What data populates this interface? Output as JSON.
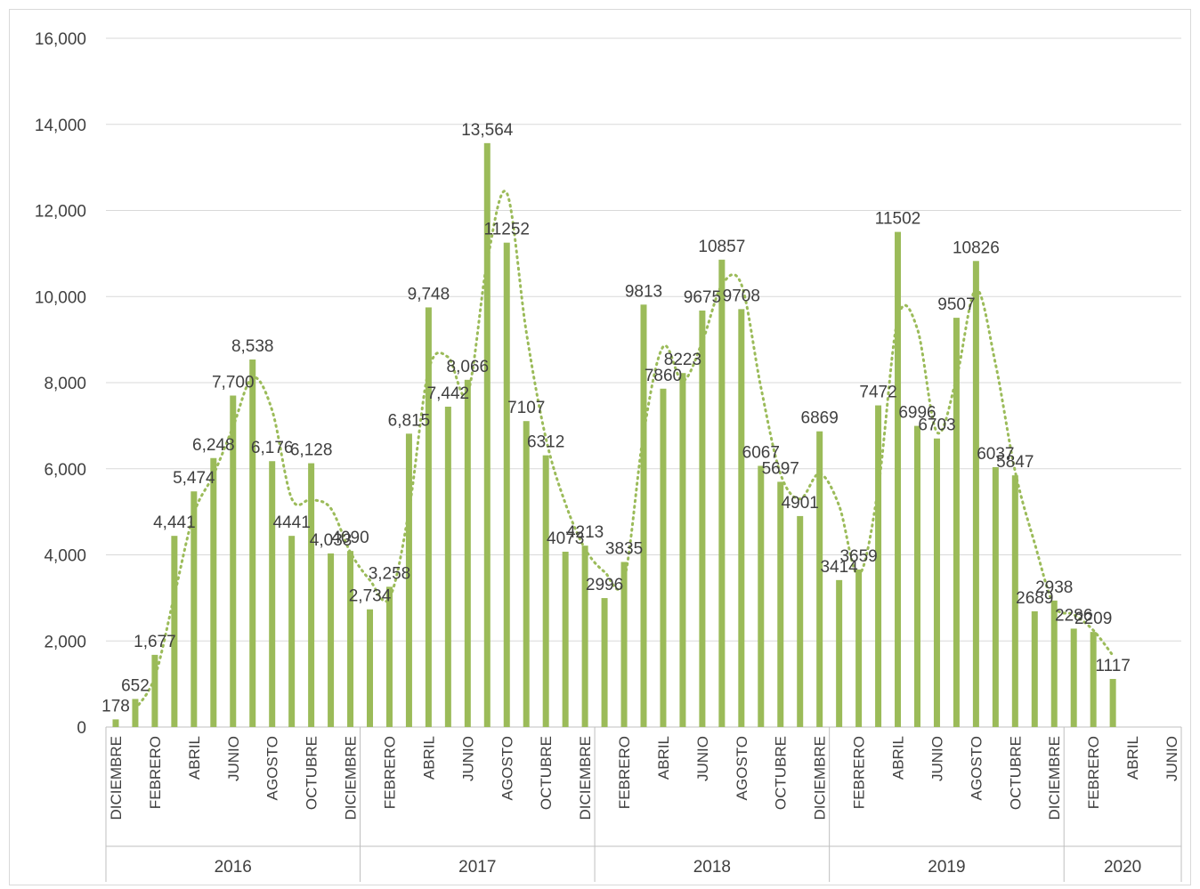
{
  "chart_data": {
    "type": "bar",
    "title": "",
    "xlabel": "",
    "ylabel": "",
    "ylim": [
      0,
      16000
    ],
    "yticks": [
      "0",
      "2,000",
      "4,000",
      "6,000",
      "8,000",
      "10,000",
      "12,000",
      "14,000",
      "16,000"
    ],
    "grid": true,
    "legend": "none",
    "bar_color": "#9bbb59",
    "trend_color": "#9bbb59",
    "trendline": "moving-average",
    "categories": [
      "DICIEMBRE",
      "",
      "FEBRERO",
      "",
      "ABRIL",
      "",
      "JUNIO",
      "",
      "AGOSTO",
      "",
      "OCTUBRE",
      "",
      "DICIEMBRE",
      "",
      "FEBRERO",
      "",
      "ABRIL",
      "",
      "JUNIO",
      "",
      "AGOSTO",
      "",
      "OCTUBRE",
      "",
      "DICIEMBRE",
      "",
      "FEBRERO",
      "",
      "ABRIL",
      "",
      "JUNIO",
      "",
      "AGOSTO",
      "",
      "OCTUBRE",
      "",
      "DICIEMBRE",
      "",
      "FEBRERO",
      "",
      "ABRIL",
      "",
      "JUNIO",
      "",
      "AGOSTO",
      "",
      "OCTUBRE",
      "",
      "DICIEMBRE",
      "",
      "FEBRERO",
      "",
      "ABRIL",
      "",
      "JUNIO"
    ],
    "years": [
      {
        "label": "2016",
        "from": 0,
        "to": 12
      },
      {
        "label": "2017",
        "from": 13,
        "to": 24
      },
      {
        "label": "2018",
        "from": 25,
        "to": 36
      },
      {
        "label": "2019",
        "from": 37,
        "to": 48
      },
      {
        "label": "2020",
        "from": 49,
        "to": 54
      }
    ],
    "values": [
      178,
      652,
      1677,
      4441,
      5474,
      6248,
      7700,
      8538,
      6176,
      4441,
      6128,
      4033,
      4090,
      2734,
      3258,
      6815,
      9748,
      7442,
      8066,
      13564,
      11252,
      7107,
      6312,
      4073,
      4213,
      2996,
      3835,
      9813,
      7860,
      8223,
      9675,
      10857,
      9708,
      6067,
      5697,
      4901,
      6869,
      3414,
      3659,
      7472,
      11502,
      6996,
      6703,
      9507,
      10826,
      6037,
      5847,
      2689,
      2938,
      2286,
      2209,
      1117,
      null,
      null,
      null
    ],
    "data_labels": [
      "178",
      "652",
      "1,677",
      "4,441",
      "5,474",
      "6,248",
      "7,700",
      "8,538",
      "6,176",
      "4441",
      "6,128",
      "4,033",
      "4090",
      "2,734",
      "3,258",
      "6,815",
      "9,748",
      "7,442",
      "8,066",
      "13,564",
      "11252",
      "7107",
      "6312",
      "4073",
      "4213",
      "2996",
      "3835",
      "9813",
      "7860",
      "8223",
      "9675",
      "10857",
      "9708",
      "6067",
      "5697",
      "4901",
      "6869",
      "3414",
      "3659",
      "7472",
      "11502",
      "6996",
      "6703",
      "9507",
      "10826",
      "6037",
      "5847",
      "2689",
      "2938",
      "2286",
      "2209",
      "1117",
      "",
      "",
      ""
    ]
  }
}
